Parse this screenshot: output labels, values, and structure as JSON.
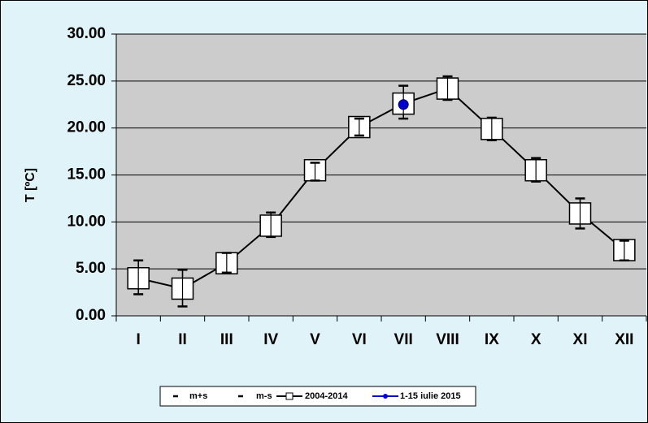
{
  "chart_data": {
    "type": "line",
    "y_label": "T [ºC]",
    "categories": [
      "I",
      "II",
      "III",
      "IV",
      "V",
      "VI",
      "VII",
      "VIII",
      "IX",
      "X",
      "XI",
      "XII"
    ],
    "series": [
      {
        "name": "m+s",
        "color": "#000000",
        "values": [
          5.9,
          4.9,
          6.7,
          11.0,
          16.3,
          21.0,
          24.5,
          25.5,
          21.1,
          16.8,
          12.5,
          8.0
        ]
      },
      {
        "name": "m-s",
        "color": "#000000",
        "values": [
          2.3,
          1.0,
          4.6,
          8.4,
          14.4,
          19.2,
          21.0,
          23.0,
          18.7,
          14.3,
          9.3,
          5.9
        ]
      },
      {
        "name": "2004-2014",
        "color": "#000000",
        "values": [
          4.0,
          2.9,
          5.6,
          9.6,
          15.5,
          20.1,
          22.6,
          24.2,
          19.9,
          15.5,
          10.9,
          7.0
        ]
      },
      {
        "name": "1-15 iulie 2015",
        "color": "#0000cc",
        "values": [
          null,
          null,
          null,
          null,
          null,
          null,
          22.5,
          null,
          null,
          null,
          null,
          null
        ]
      }
    ],
    "ylim": [
      0,
      30
    ],
    "yticks": [
      {
        "value": 0,
        "label": "0.00"
      },
      {
        "value": 5,
        "label": "5.00"
      },
      {
        "value": 10,
        "label": "10.00"
      },
      {
        "value": 15,
        "label": "15.00"
      },
      {
        "value": 20,
        "label": "20.00"
      },
      {
        "value": 25,
        "label": "25.00"
      },
      {
        "value": 30,
        "label": "30.00"
      }
    ],
    "grid": true,
    "legend": "bottom"
  }
}
